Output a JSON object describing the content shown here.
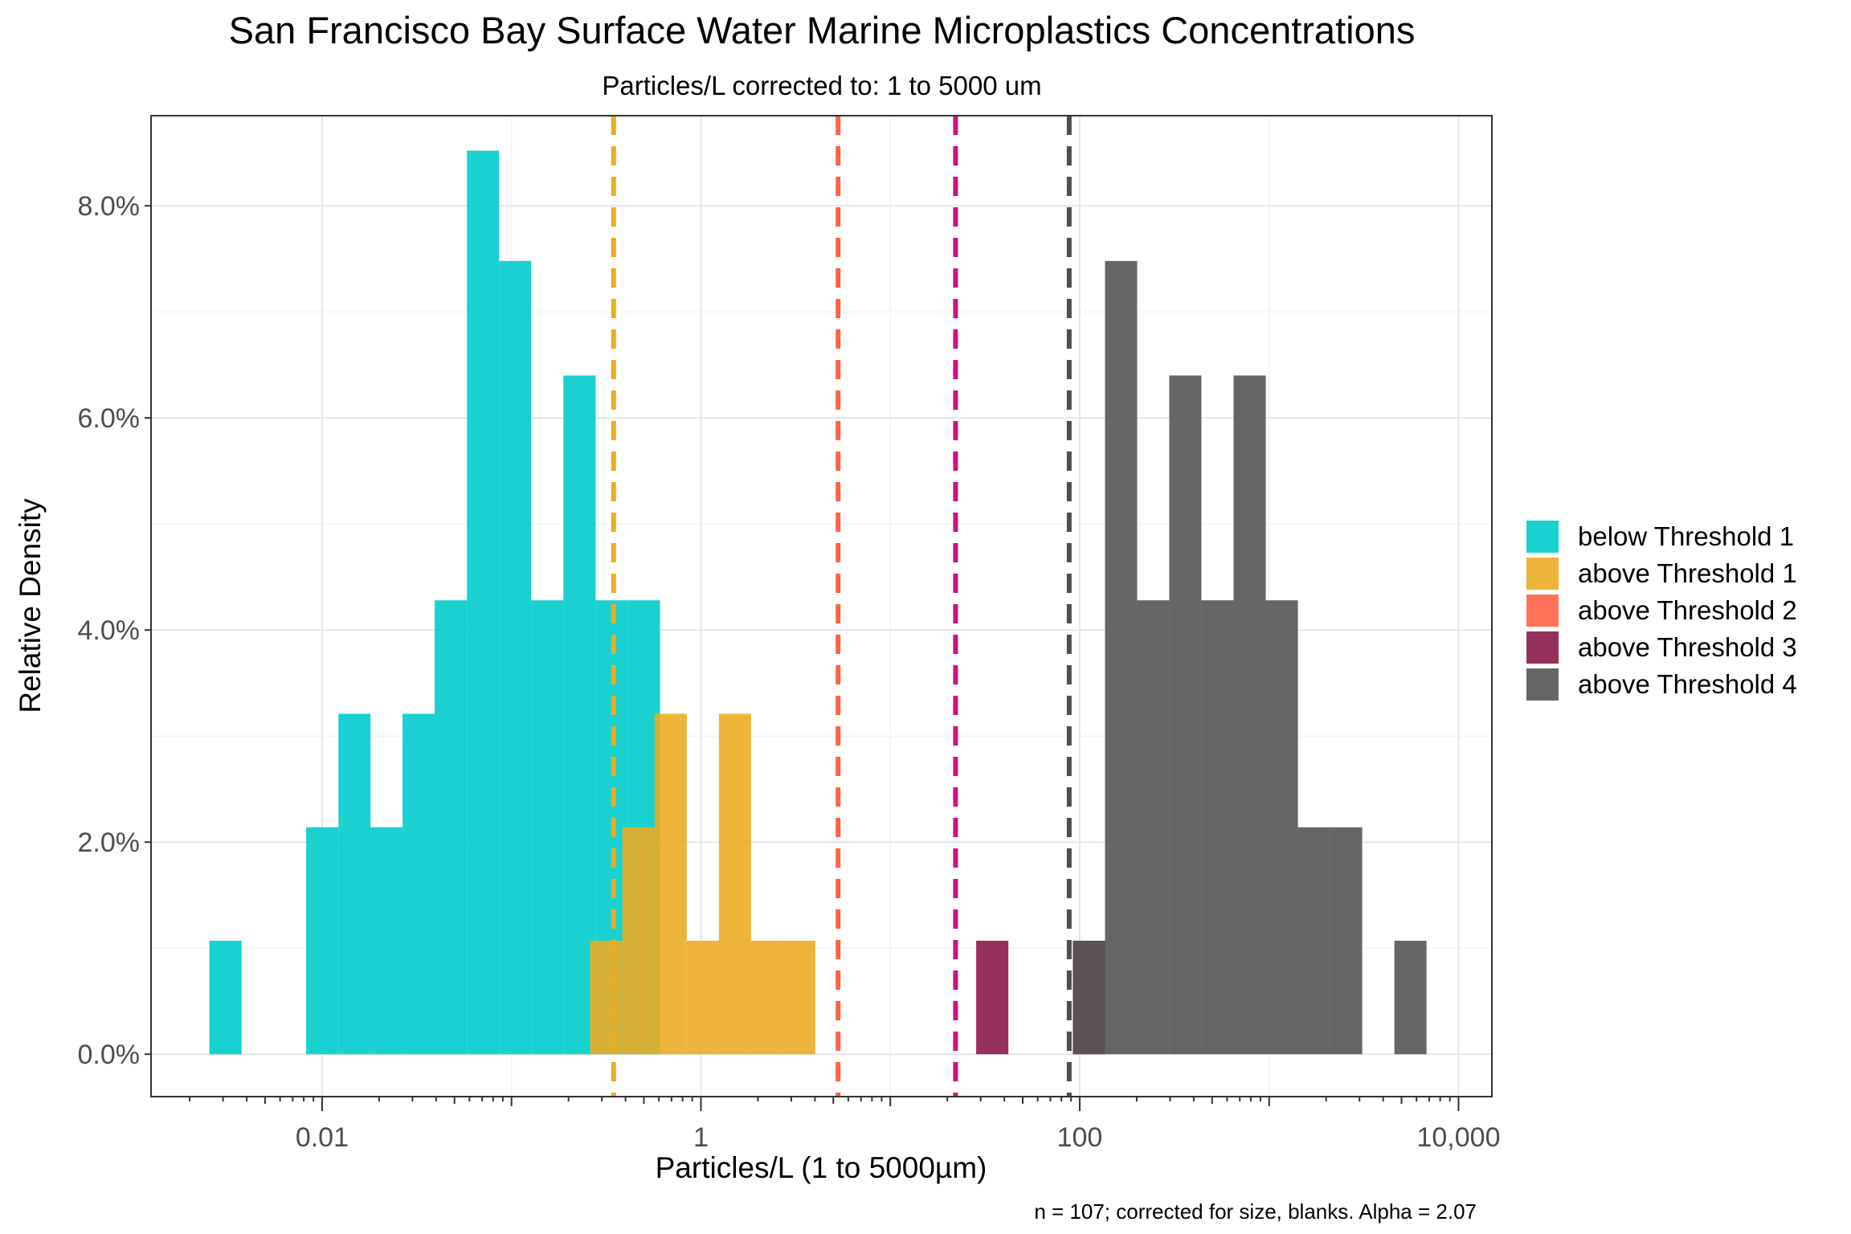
{
  "chart_data": {
    "type": "bar",
    "title": "San Francisco Bay Surface Water Marine Microplastics Concentrations",
    "subtitle": "Particles/L corrected to: 1 to 5000 um",
    "xlabel": "Particles/L (1 to 5000µm)",
    "ylabel": "Relative Density",
    "caption": "n = 107; corrected for size, blanks. Alpha =  2.07",
    "x_scale": "log10",
    "xlim": [
      0.00125,
      15000
    ],
    "ylim": [
      -0.004,
      0.0885
    ],
    "x_ticks": [
      {
        "value": 0.01,
        "label": "0.01"
      },
      {
        "value": 1,
        "label": "1"
      },
      {
        "value": 100,
        "label": "100"
      },
      {
        "value": 10000,
        "label": "10,000"
      }
    ],
    "y_ticks": [
      {
        "value": 0.0,
        "label": "0.0%"
      },
      {
        "value": 0.02,
        "label": "2.0%"
      },
      {
        "value": 0.04,
        "label": "4.0%"
      },
      {
        "value": 0.06,
        "label": "6.0%"
      },
      {
        "value": 0.08,
        "label": "8.0%"
      }
    ],
    "grid": true,
    "legend_position": "right",
    "bin_width_log10": 0.1698,
    "series": [
      {
        "name": "below Threshold 1",
        "color": "#00CCCC",
        "bins": [
          {
            "x_min": 0.00254,
            "x_max": 0.00376,
            "density": 0.0107
          },
          {
            "x_min": 0.00824,
            "x_max": 0.0122,
            "density": 0.0214
          },
          {
            "x_min": 0.0122,
            "x_max": 0.018,
            "density": 0.0321
          },
          {
            "x_min": 0.018,
            "x_max": 0.0266,
            "density": 0.0214
          },
          {
            "x_min": 0.0266,
            "x_max": 0.0393,
            "density": 0.0321
          },
          {
            "x_min": 0.0393,
            "x_max": 0.0582,
            "density": 0.0428
          },
          {
            "x_min": 0.0582,
            "x_max": 0.086,
            "density": 0.0852
          },
          {
            "x_min": 0.086,
            "x_max": 0.127,
            "density": 0.0748
          },
          {
            "x_min": 0.127,
            "x_max": 0.188,
            "density": 0.0428
          },
          {
            "x_min": 0.188,
            "x_max": 0.278,
            "density": 0.064
          },
          {
            "x_min": 0.278,
            "x_max": 0.412,
            "density": 0.0428
          },
          {
            "x_min": 0.412,
            "x_max": 0.608,
            "density": 0.0428
          }
        ]
      },
      {
        "name": "above Threshold 1",
        "color": "#EBAC23",
        "bins": [
          {
            "x_min": 0.26,
            "x_max": 0.385,
            "density": 0.0107
          },
          {
            "x_min": 0.385,
            "x_max": 0.57,
            "density": 0.0214
          },
          {
            "x_min": 0.57,
            "x_max": 0.842,
            "density": 0.0321
          },
          {
            "x_min": 0.842,
            "x_max": 1.245,
            "density": 0.0107
          },
          {
            "x_min": 1.245,
            "x_max": 1.84,
            "density": 0.0321
          },
          {
            "x_min": 1.84,
            "x_max": 2.72,
            "density": 0.0107
          },
          {
            "x_min": 2.72,
            "x_max": 4.02,
            "density": 0.0107
          }
        ]
      },
      {
        "name": "above Threshold 2",
        "color": "#FF6347",
        "bins": []
      },
      {
        "name": "above Threshold 3",
        "color": "#8B1A4A",
        "bins": [
          {
            "x_min": 28.4,
            "x_max": 42.0,
            "density": 0.0107
          },
          {
            "x_min": 92.0,
            "x_max": 136.0,
            "density": 0.0107
          }
        ]
      },
      {
        "name": "above Threshold 4",
        "color": "#555555",
        "bins": [
          {
            "x_min": 92.0,
            "x_max": 136.0,
            "density": 0.0107
          },
          {
            "x_min": 136.0,
            "x_max": 201.0,
            "density": 0.0748
          },
          {
            "x_min": 201.0,
            "x_max": 297.0,
            "density": 0.0428
          },
          {
            "x_min": 297.0,
            "x_max": 439.0,
            "density": 0.064
          },
          {
            "x_min": 439.0,
            "x_max": 649.0,
            "density": 0.0428
          },
          {
            "x_min": 649.0,
            "x_max": 960.0,
            "density": 0.064
          },
          {
            "x_min": 960.0,
            "x_max": 1419.0,
            "density": 0.0428
          },
          {
            "x_min": 1419.0,
            "x_max": 2098.0,
            "density": 0.0214
          },
          {
            "x_min": 2098.0,
            "x_max": 3101.0,
            "density": 0.0214
          },
          {
            "x_min": 4584.0,
            "x_max": 6776.0,
            "density": 0.0107
          }
        ]
      }
    ],
    "threshold_lines": [
      {
        "name": "Threshold 1",
        "x": 0.346,
        "color": "#EBAC23"
      },
      {
        "name": "Threshold 2",
        "x": 5.3,
        "color": "#FF6347"
      },
      {
        "name": "Threshold 3",
        "x": 22.1,
        "color": "#CC1380"
      },
      {
        "name": "Threshold 4",
        "x": 88.0,
        "color": "#4D4D4D"
      }
    ]
  }
}
